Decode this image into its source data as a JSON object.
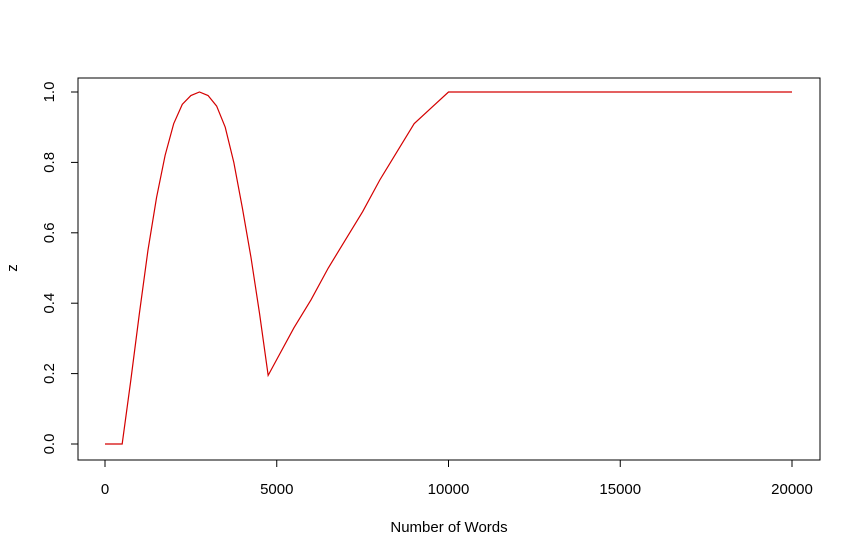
{
  "chart_data": {
    "type": "line",
    "title": "",
    "xlabel": "Number of Words",
    "ylabel": "z",
    "xlim": [
      0,
      20000
    ],
    "ylim": [
      0,
      1
    ],
    "xticks": [
      0,
      5000,
      10000,
      15000,
      20000
    ],
    "yticks": [
      0.0,
      0.2,
      0.4,
      0.6,
      0.8,
      1.0
    ],
    "xtick_labels": [
      "0",
      "5000",
      "10000",
      "15000",
      "20000"
    ],
    "ytick_labels": [
      "0.0",
      "0.2",
      "0.4",
      "0.6",
      "0.8",
      "1.0"
    ],
    "grid": false,
    "series": [
      {
        "color": "#d40000",
        "x": [
          0,
          500,
          750,
          1000,
          1250,
          1500,
          1750,
          2000,
          2250,
          2500,
          2750,
          3000,
          3250,
          3500,
          3750,
          4000,
          4250,
          4500,
          4750,
          5000,
          5500,
          6000,
          6500,
          7000,
          7500,
          8000,
          8500,
          9000,
          9500,
          10000,
          12500,
          15000,
          17500,
          20000
        ],
        "y": [
          0,
          0,
          0.18,
          0.37,
          0.55,
          0.7,
          0.82,
          0.91,
          0.965,
          0.99,
          1.0,
          0.99,
          0.96,
          0.9,
          0.8,
          0.67,
          0.53,
          0.37,
          0.195,
          0.24,
          0.33,
          0.41,
          0.5,
          0.58,
          0.66,
          0.75,
          0.83,
          0.91,
          0.955,
          1.0,
          1.0,
          1.0,
          1.0,
          1.0
        ]
      }
    ]
  }
}
